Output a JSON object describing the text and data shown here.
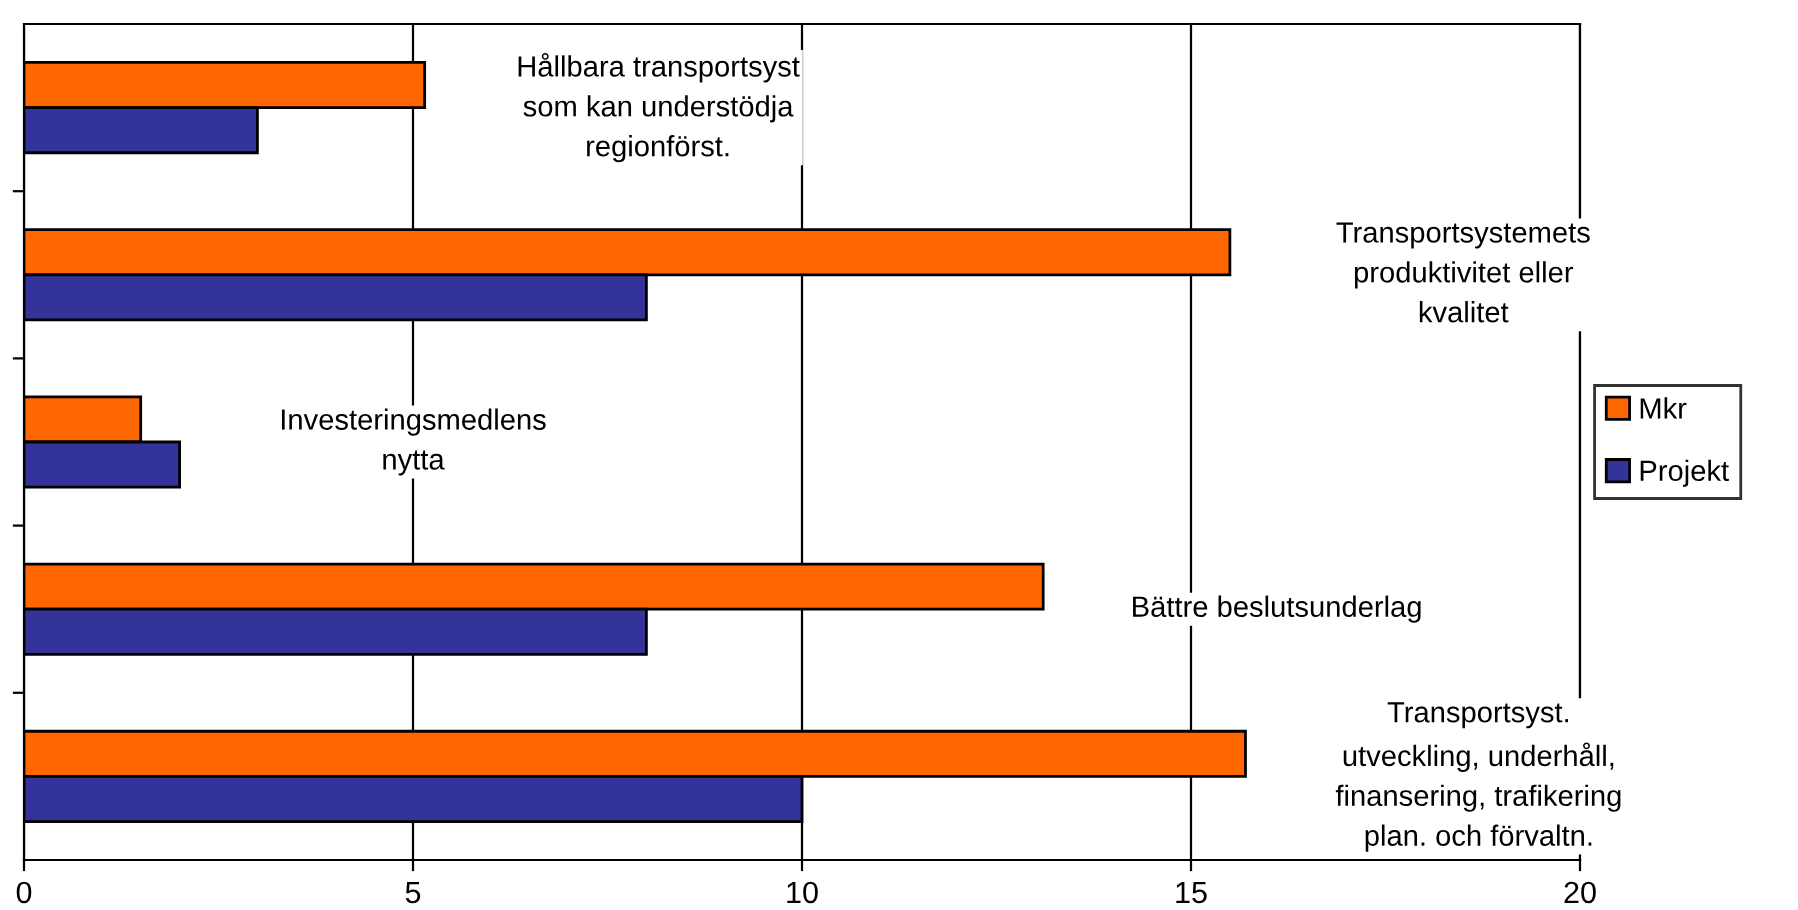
{
  "chart_data": {
    "type": "bar",
    "orientation": "horizontal",
    "categories": [
      "Hållbara transportsyst\nsom kan understödja\nregionförst.",
      "Transportsystemets\nproduktivitet eller\nkvalitet",
      "Investeringsmedlens\nnytta",
      "Bättre beslutsunderlag",
      "Transportsyst.\nutveckling, underhåll,\nfinansering, trafikering\nplan. och förvaltn."
    ],
    "series": [
      {
        "name": "Mkr",
        "color": "#ff6600",
        "values": [
          5.15,
          15.5,
          1.5,
          13.1,
          15.7
        ]
      },
      {
        "name": "Projekt",
        "color": "#333399",
        "values": [
          3,
          8,
          2,
          8,
          10
        ]
      }
    ],
    "xlim": [
      0,
      20
    ],
    "xticks": [
      0,
      5,
      10,
      15,
      20
    ],
    "grid": "x",
    "legend": "right",
    "tick_labels": "x"
  }
}
